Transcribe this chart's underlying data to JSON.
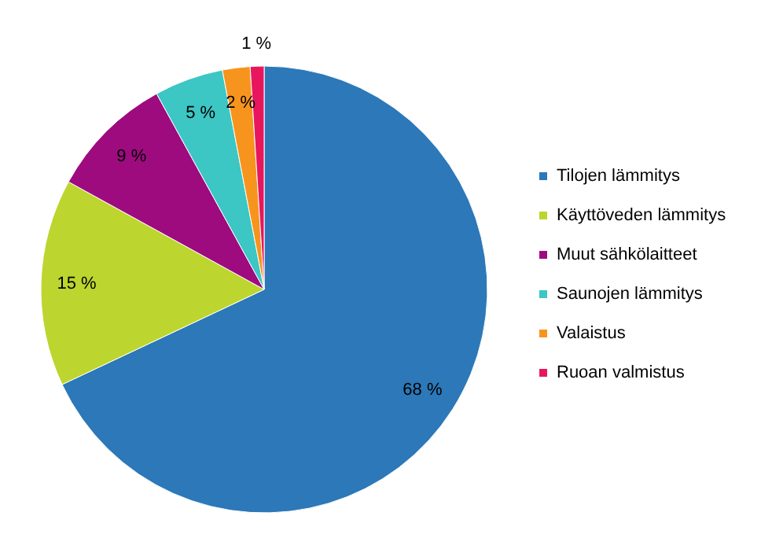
{
  "chart_data": {
    "type": "pie",
    "categories": [
      "Tilojen lämmitys",
      "Käyttöveden lämmitys",
      "Muut sähkölaitteet",
      "Saunojen lämmitys",
      "Valaistus",
      "Ruoan valmistus"
    ],
    "values": [
      68,
      15,
      9,
      5,
      2,
      1
    ],
    "colors": [
      "#2c78b8",
      "#bdd52f",
      "#9e0b7f",
      "#3cc6c4",
      "#f7941e",
      "#e8175d"
    ],
    "value_labels": [
      "68 %",
      "15 %",
      "9 %",
      "5 %",
      "2 %",
      "1 %"
    ],
    "legend": "right"
  }
}
